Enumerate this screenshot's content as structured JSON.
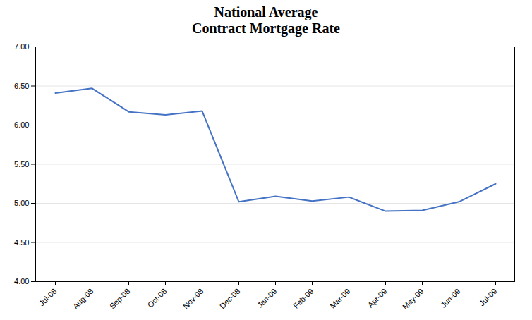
{
  "chart_data": {
    "type": "line",
    "title": "National Average\nContract Mortgage Rate",
    "categories": [
      "Jul-08",
      "Aug-08",
      "Sep-08",
      "Oct-08",
      "Nov-08",
      "Dec-08",
      "Jan-09",
      "Feb-09",
      "Mar-09",
      "Apr-09",
      "May-09",
      "Jun-09",
      "Jul-09"
    ],
    "values": [
      6.41,
      6.47,
      6.17,
      6.13,
      6.18,
      5.02,
      5.09,
      5.03,
      5.08,
      4.9,
      4.91,
      5.02,
      5.25
    ],
    "color": "#4472C4",
    "ylim": [
      4.0,
      7.0
    ],
    "yticks": [
      {
        "value": 4.0,
        "label": "4.00"
      },
      {
        "value": 4.5,
        "label": "4.50"
      },
      {
        "value": 5.0,
        "label": "5.00"
      },
      {
        "value": 5.5,
        "label": "5.50"
      },
      {
        "value": 6.0,
        "label": "6.00"
      },
      {
        "value": 6.5,
        "label": "6.50"
      },
      {
        "value": 7.0,
        "label": "7.00"
      }
    ],
    "grid": true
  }
}
